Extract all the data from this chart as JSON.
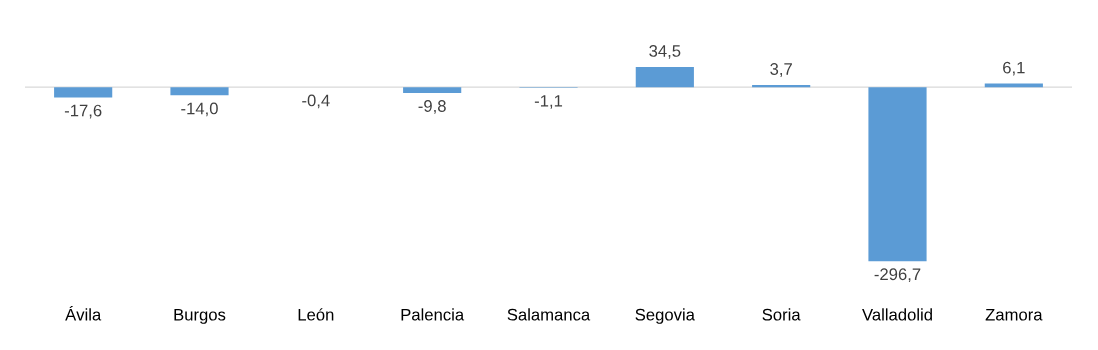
{
  "chart_data": {
    "type": "bar",
    "categories": [
      "Ávila",
      "Burgos",
      "León",
      "Palencia",
      "Salamanca",
      "Segovia",
      "Soria",
      "Valladolid",
      "Zamora"
    ],
    "values": [
      -17.6,
      -14.0,
      -0.4,
      -9.8,
      -1.1,
      34.5,
      3.7,
      -296.7,
      6.1
    ],
    "value_labels": [
      "-17,6",
      "-14,0",
      "-0,4",
      "-9,8",
      "-1,1",
      "34,5",
      "3,7",
      "-296,7",
      "6,1"
    ],
    "color": "#5b9bd5",
    "grid": false,
    "legend": false
  }
}
